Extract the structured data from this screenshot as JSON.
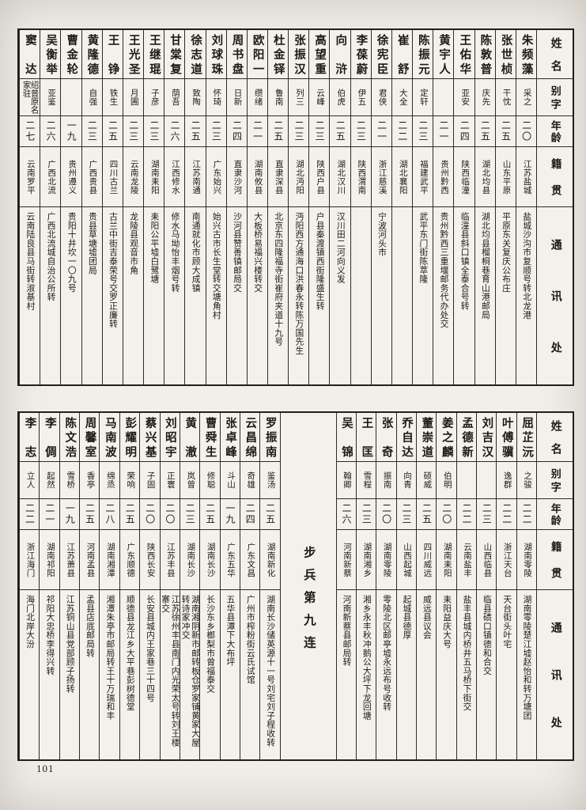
{
  "page_number": "101",
  "col_headers": {
    "name": "姓名",
    "zi": "别字",
    "age": "年龄",
    "native": "籍贯",
    "contact": "通讯处"
  },
  "tables": [
    {
      "entries": [
        {
          "name": "朱频藻",
          "zi": "采之",
          "age": "二〇",
          "native": "江苏盐城",
          "addr": "盐城沙沟市复顺号转北龙港"
        },
        {
          "name": "张世桢",
          "zi": "干忱",
          "age": "二五",
          "native": "山东平原",
          "addr": "平原东关复庆公布庄"
        },
        {
          "name": "陈敦普",
          "zi": "庆先",
          "age": "二五",
          "native": "湖北均县",
          "addr": "湖北均县榴桐巷育山港邮局"
        },
        {
          "name": "王佑华",
          "zi": "亚安",
          "age": "二四",
          "native": "陕西临潼",
          "addr": "临潼县斜口镇全泰合号转"
        },
        {
          "name": "黄宇人",
          "zi": "",
          "age": "二一",
          "native": "贵州黔西",
          "addr": "贵州黔西三重堰邮务代办处交"
        },
        {
          "name": "陈振元",
          "zi": "定轩",
          "age": "二三",
          "native": "福建武平",
          "addr": "武平东门街陈萃隆"
        },
        {
          "name": "崔舒",
          "zi": "大全",
          "age": "二二",
          "native": "湖北襄阳",
          "addr": ""
        },
        {
          "name": "徐宪臣",
          "zi": "君侠",
          "age": "二一",
          "native": "浙江慈溪",
          "addr": "宁波河头市"
        },
        {
          "name": "李葆蔚",
          "zi": "伊五",
          "age": "二三",
          "native": "陕西渭南",
          "addr": ""
        },
        {
          "name": "向浒",
          "zi": "伯虎",
          "age": "二五",
          "native": "湖北汉川",
          "addr": "汉川田二河向义发"
        },
        {
          "name": "高望重",
          "zi": "云峰",
          "age": "二三",
          "native": "陕西户县",
          "addr": "户县秦渡镇西街隆盛生转"
        },
        {
          "name": "张振汉",
          "zi": "列三",
          "age": "二三",
          "native": "湖北沔阳",
          "addr": "沔阳西方通海口洪春永转陈万国先生"
        },
        {
          "name": "杜金铎",
          "zi": "鲁南",
          "age": "二五",
          "native": "直隶深县",
          "addr": "北京东四隆福寺街崔府夹道十九号"
        },
        {
          "name": "欧阳一",
          "zi": "缵绪",
          "age": "二一",
          "native": "湖南攸县",
          "addr": "大板桥易福兴楼转交"
        },
        {
          "name": "周书盘",
          "zi": "日新",
          "age": "二四",
          "native": "直隶沙河",
          "addr": "沙河县赞善镇邮局交"
        },
        {
          "name": "刘球珠",
          "zi": "怀琦",
          "age": "二三",
          "native": "广东始兴",
          "addr": "始兴古市长生堂转交塘角村"
        },
        {
          "name": "徐志道",
          "zi": "致陶",
          "age": "二五",
          "native": "江苏南通",
          "addr": "南通就化市顾大成镇"
        },
        {
          "name": "甘棠复",
          "zi": "荫吾",
          "age": "二六",
          "native": "江西修水",
          "addr": "修水马坳怡丰烟号转"
        },
        {
          "name": "王继琨",
          "zi": "子彦",
          "age": "二三",
          "native": "湖南耒阳",
          "addr": "耒阳公平墟白鹭塘"
        },
        {
          "name": "王光圣",
          "zi": "月圃",
          "age": "二三",
          "native": "云南龙陵",
          "addr": "龙陵县观音市角"
        },
        {
          "name": "王铮",
          "zi": "铁生",
          "age": "二五",
          "native": "四川古兰",
          "addr": "古兰中街吉泰荣号交罗正廉转"
        },
        {
          "name": "黄隆德",
          "zi": "自强",
          "age": "二三",
          "native": "广西贵县",
          "addr": "贵县草塘墟团局"
        },
        {
          "name": "曹金轮",
          "zi": "",
          "age": "一九",
          "native": "贵州遵义",
          "addr": "贵阳十井坎一〇九号"
        },
        {
          "name": "吴衡举",
          "zi": "亚鉴",
          "age": "二六",
          "native": "广西北流",
          "addr": "广西北流城自治公所转"
        },
        {
          "name": "窦达",
          "zi": "绍普原名家驻",
          "age": "二七",
          "native": "云南罗平",
          "addr": "云南陆良县马街转淑基村"
        }
      ]
    },
    {
      "section_label": "步兵第九连",
      "entries_right": [
        {
          "name": "屈芷沅",
          "zi": "之骏",
          "age": "二二",
          "native": "湖南零陵",
          "addr": "湖南零陵楚江墟赵怡和转万塘团"
        },
        {
          "name": "叶傅骥",
          "zi": "逸群",
          "age": "二二",
          "native": "浙江天台",
          "addr": "天台街头叶宅"
        },
        {
          "name": "刘吉汉",
          "zi": "",
          "age": "二三",
          "native": "山西临县",
          "addr": "临县碛口镇德和合交"
        },
        {
          "name": "孟德新",
          "zi": "",
          "age": "二二",
          "native": "云南盐丰",
          "addr": "盐丰县城内桥井五马桥下街交"
        },
        {
          "name": "姜之麟",
          "zi": "伯明",
          "age": "二〇",
          "native": "湖南耒阳",
          "addr": "耒阳益庆大号"
        },
        {
          "name": "董崇道",
          "zi": "硕威",
          "age": "二五",
          "native": "四川威远",
          "addr": "威远县议会"
        },
        {
          "name": "乔自达",
          "zi": "向青",
          "age": "二三",
          "native": "山西起城",
          "addr": "起城县德厚"
        },
        {
          "name": "张奇",
          "zi": "振南",
          "age": "二〇",
          "native": "湖南零陵",
          "addr": "零陵北区邮亭墟永远布号收转"
        },
        {
          "name": "王匡",
          "zi": "雪程",
          "age": "二三",
          "native": "湖南湘乡",
          "addr": "湘乡永丰秋冲鹅公大坪下龙回塘"
        },
        {
          "name": "吴锦",
          "zi": "翰卿",
          "age": "二六",
          "native": "河南新蔡",
          "addr": "河南新蔡县邮局转"
        }
      ],
      "entries_left": [
        {
          "name": "罗振南",
          "zi": "鉴汤",
          "age": "二五",
          "native": "湖南新化",
          "addr": "湖南长沙储英源十一号刘宅刘子程收转"
        },
        {
          "name": "云昌绵",
          "zi": "奇雄",
          "age": "二四",
          "native": "广东文昌",
          "addr": "广州市榨粉街云氏试馆"
        },
        {
          "name": "张卓峰",
          "zi": "斗山",
          "age": "一九",
          "native": "广东五华",
          "addr": "五华县潭下大布坪"
        },
        {
          "name": "曹舜生",
          "zi": "修聪",
          "age": "二五",
          "native": "湖南长沙",
          "addr": "长沙东乡榔梨市曾福泰交"
        },
        {
          "name": "黄澈",
          "zi": "岚曾",
          "age": "二三",
          "native": "湖南长沙",
          "addr": "湖南湘阴新市邮转板仓罗家铺黄家大屋转诗家冲交"
        },
        {
          "name": "刘昭宇",
          "zi": "正寰",
          "age": "二〇",
          "native": "江苏丰县",
          "addr": "江苏徐州丰县南门内光荣太号转刘王楼寨交"
        },
        {
          "name": "蔡兴基",
          "zi": "子固",
          "age": "二〇",
          "native": "陕西长安",
          "addr": "长安县城内王家巷三十四号"
        },
        {
          "name": "彭耀明",
          "zi": "荣响",
          "age": "二五",
          "native": "广东顺德",
          "addr": "顺德县龙江乡大平巷彭树德堂"
        },
        {
          "name": "马南波",
          "zi": "绵烝",
          "age": "二八",
          "native": "湖南湘潭",
          "addr": "湘潭朱亭市邮局转王十万瑞和丰"
        },
        {
          "name": "周馨室",
          "zi": "香亭",
          "age": "二五",
          "native": "河南孟县",
          "addr": "孟县店底邮局转"
        },
        {
          "name": "陈文浩",
          "zi": "雪桥",
          "age": "一九",
          "native": "江苏萧县",
          "addr": "江苏铜山县党部顾子扬转"
        },
        {
          "name": "李倜",
          "zi": "起然",
          "age": "二一",
          "native": "湖南祁阳",
          "addr": "祁阳大忠桥李得兴转"
        },
        {
          "name": "李志",
          "zi": "立人",
          "age": "二二",
          "native": "浙江海门",
          "addr": "海门北岸大汾"
        }
      ]
    }
  ]
}
